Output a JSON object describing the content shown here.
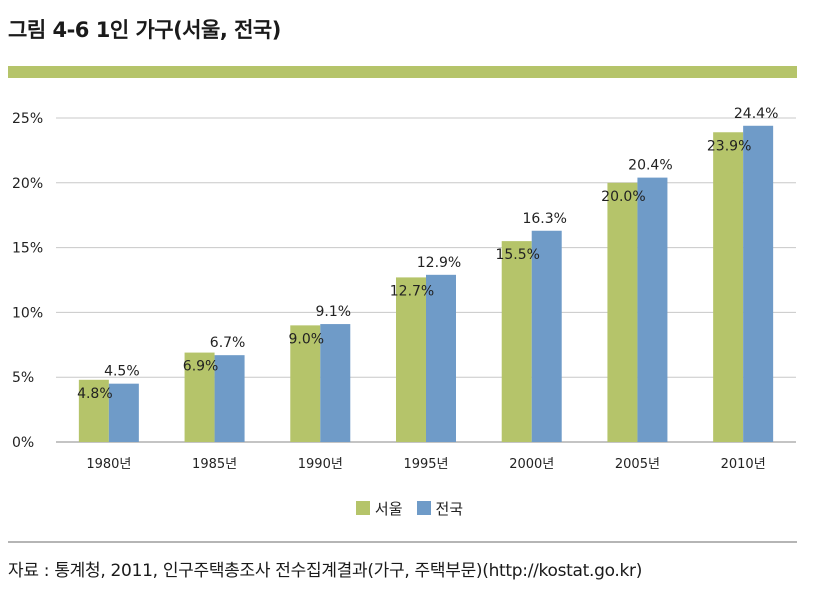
{
  "title": "그림 4-6 1인 가구(서울, 전국)",
  "colors": {
    "rule": "#b5c46a",
    "seoul": "#b5c46a",
    "national": "#6f9bc8",
    "grid": "#c8c8c8",
    "axis": "#888888"
  },
  "chart_data": {
    "type": "bar",
    "categories": [
      "1980년",
      "1985년",
      "1990년",
      "1995년",
      "2000년",
      "2005년",
      "2010년"
    ],
    "series": [
      {
        "name": "서울",
        "values": [
          4.8,
          6.9,
          9.0,
          12.7,
          15.5,
          20.0,
          23.9
        ],
        "labels": [
          "4.8%",
          "6.9%",
          "9.0%",
          "12.7%",
          "15.5%",
          "20.0%",
          "23.9%"
        ]
      },
      {
        "name": "전국",
        "values": [
          4.5,
          6.7,
          9.1,
          12.9,
          16.3,
          20.4,
          24.4
        ],
        "labels": [
          "4.5%",
          "6.7%",
          "9.1%",
          "12.9%",
          "16.3%",
          "20.4%",
          "24.4%"
        ]
      }
    ],
    "ylim": [
      0,
      25
    ],
    "yticks": [
      0,
      5,
      10,
      15,
      20,
      25
    ],
    "ytick_labels": [
      "0%",
      "5%",
      "10%",
      "15%",
      "20%",
      "25%"
    ],
    "grid": true,
    "legend_position": "bottom-center"
  },
  "source": "자료 : 통계청, 2011, 인구주택총조사 전수집계결과(가구, 주택부문)(http://kostat.go.kr)"
}
